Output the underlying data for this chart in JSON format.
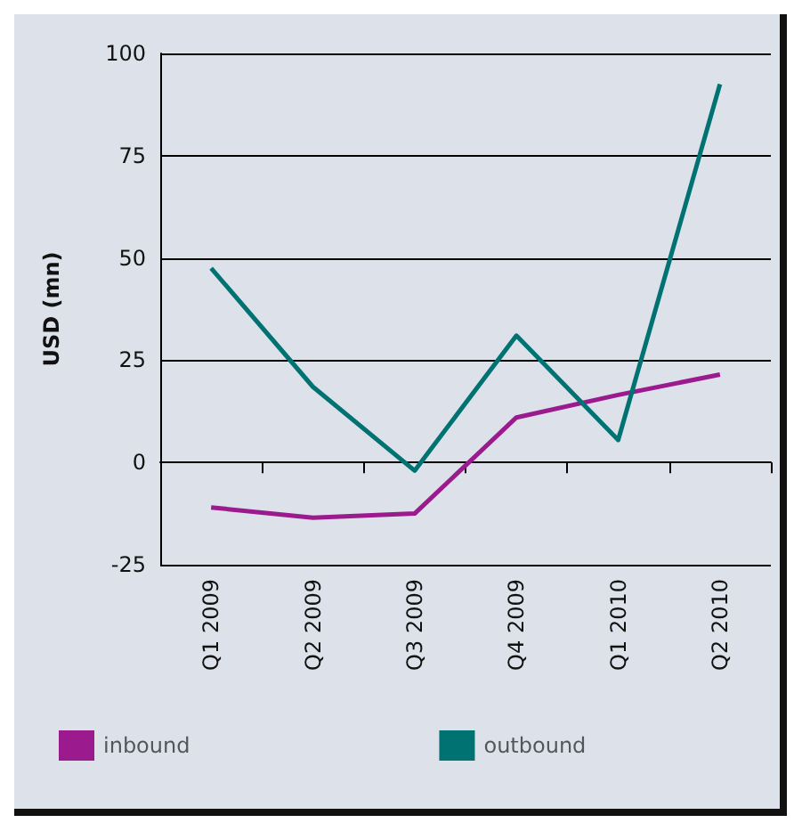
{
  "chart_data": {
    "type": "line",
    "ylabel": "USD (mn)",
    "categories": [
      "Q1 2009",
      "Q2 2009",
      "Q3 2009",
      "Q4 2009",
      "Q1 2010",
      "Q2 2010"
    ],
    "series": [
      {
        "name": "inbound",
        "color": "#9b1b8e",
        "values": [
          -11,
          -13.5,
          -12.5,
          11,
          16.5,
          21.5
        ]
      },
      {
        "name": "outbound",
        "color": "#007272",
        "values": [
          47.5,
          18.5,
          -2,
          31,
          5.5,
          92.5
        ]
      }
    ],
    "ylim": [
      -25,
      100
    ],
    "yticks": [
      -25,
      0,
      25,
      50,
      75,
      100
    ],
    "grid": "y",
    "legend": "bottom",
    "marker": "none",
    "line_style": "solid"
  }
}
